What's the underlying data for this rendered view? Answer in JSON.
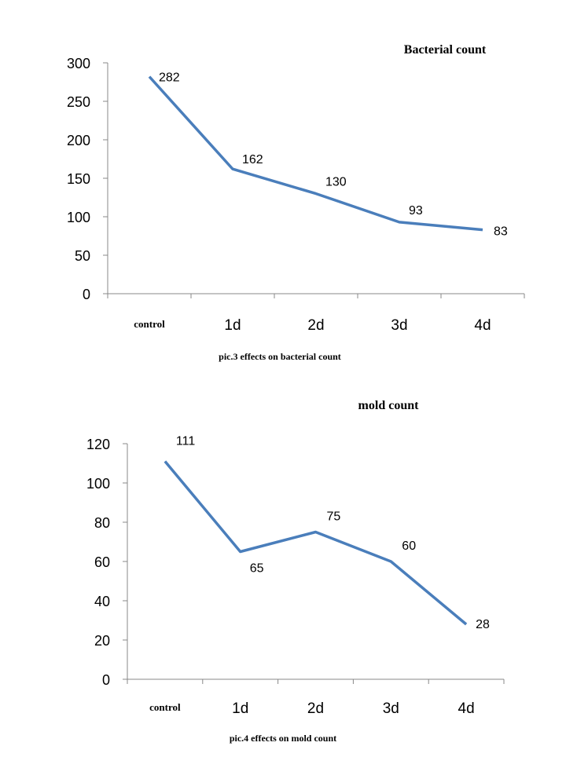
{
  "chart_data": [
    {
      "type": "line",
      "title": "Bacterial count",
      "caption": "pic.3 effects on bacterial count",
      "categories": [
        "control",
        "1d",
        "2d",
        "3d",
        "4d"
      ],
      "values": [
        282,
        162,
        130,
        93,
        83
      ],
      "data_labels": [
        "282",
        "162",
        "130",
        "93",
        "83"
      ],
      "ylim": [
        0,
        300
      ],
      "yticks": [
        0,
        50,
        100,
        150,
        200,
        250,
        300
      ],
      "line_color": "#4a7ebb",
      "grid": false,
      "legend": "none"
    },
    {
      "type": "line",
      "title": "mold count",
      "caption": "pic.4 effects on mold count",
      "categories": [
        "control",
        "1d",
        "2d",
        "3d",
        "4d"
      ],
      "values": [
        111,
        65,
        75,
        60,
        28
      ],
      "data_labels": [
        "111",
        "65",
        "75",
        "60",
        "28"
      ],
      "ylim": [
        0,
        120
      ],
      "yticks": [
        0,
        20,
        40,
        60,
        80,
        100,
        120
      ],
      "line_color": "#4a7ebb",
      "grid": false,
      "legend": "none"
    }
  ]
}
